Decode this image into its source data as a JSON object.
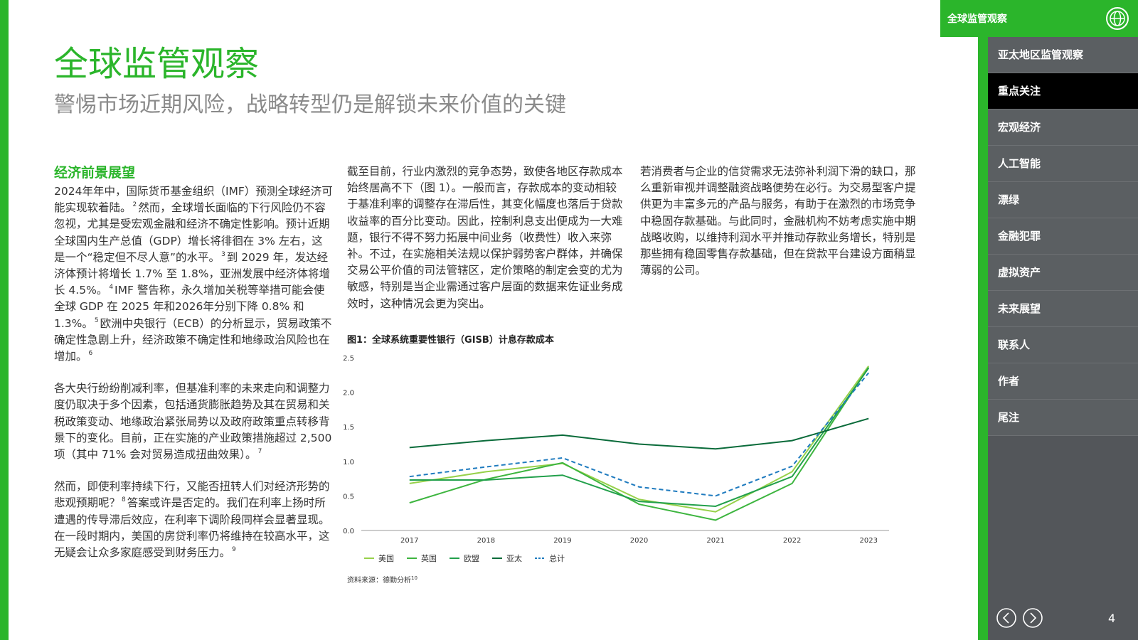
{
  "header": {
    "title": "全球监管观察",
    "subtitle": "警惕市场近期风险，战略转型仍是解锁未来价值的关键"
  },
  "columns": [
    {
      "heading": "经济前景展望",
      "paragraphs": [
        {
          "runs": [
            {
              "text": "2024年年中，国际货币基金组织（IMF）预测全球经济可能实现软着陆。",
              "note": 2
            },
            {
              "text": "然而，全球增长面临的下行风险仍不容忽视，尤其是受宏观金融和经济不确定性影响。预计近期全球国内生产总值（GDP）增长将徘徊在 3% 左右，这是一个“稳定但不尽人意”的水平。",
              "note": 3
            },
            {
              "text": "到 2029 年，发达经济体预计将增长 1.7% 至 1.8%，亚洲发展中经济体将增长 4.5%。",
              "note": 4
            },
            {
              "text": "IMF 警告称，永久增加关税等举措可能会使全球 GDP 在 2025 年和2026年分别下降 0.8% 和 1.3%。",
              "note": 5
            },
            {
              "text": "欧洲中央银行（ECB）的分析显示，贸易政策不确定性急剧上升，经济政策不确定性和地缘政治风险也在增加。",
              "note": 6
            }
          ]
        },
        {
          "runs": [
            {
              "text": "各大央行纷纷削减利率，但基准利率的未来走向和调整力度仍取决于多个因素，包括通货膨胀趋势及其在贸易和关税政策变动、地缘政治紧张局势以及政府政策重点转移背景下的变化。目前，正在实施的产业政策措施超过 2,500 项（其中 71% 会对贸易造成扭曲效果）。",
              "note": 7
            }
          ]
        },
        {
          "runs": [
            {
              "text": "然而，即使利率持续下行，又能否扭转人们对经济形势的悲观预期呢？",
              "note": 8
            },
            {
              "text": "答案或许是否定的。我们在利率上扬时所遭遇的传导滞后效应，在利率下调阶段同样会显著显现。在一段时期内，美国的房贷利率仍将维持在较高水平，这无疑会让众多家庭感受到财务压力。",
              "note": 9
            }
          ]
        }
      ]
    },
    {
      "paragraphs": [
        {
          "runs": [
            {
              "text": "截至目前，行业内激烈的竞争态势，致使各地区存款成本始终居高不下（图 1）。一般而言，存款成本的变动相较于基准利率的调整存在滞后性，其变化幅度也落后于贷款收益率的百分比变动。因此，控制利息支出便成为一大难题，银行不得不努力拓展中间业务（收费性）收入来弥补。不过，在实施相关法规以保护弱势客户群体，并确保交易公平价值的司法管辖区，定价策略的制定会变的尤为敏感，特别是当企业需通过客户层面的数据来佐证业务成效时，这种情况会更为突出。"
            }
          ]
        }
      ]
    },
    {
      "paragraphs": [
        {
          "runs": [
            {
              "text": "若消费者与企业的信贷需求无法弥补利润下滑的缺口，那么重新审视并调整融资战略便势在必行。为交易型客户提供更为丰富多元的产品与服务，有助于在激烈的市场竞争中稳固存款基础。与此同时，金融机构不妨考虑实施中期战略收购，以维持利润水平并推动存款业务增长，特别是那些拥有稳固零售存款基础，但在贷款平台建设方面稍显薄弱的公司。"
            }
          ]
        }
      ]
    }
  ],
  "chart_data": {
    "type": "line",
    "title": "图1：全球系统重要性银行（GISB）计息存款成本",
    "categories": [
      "2017",
      "2018",
      "2019",
      "2020",
      "2021",
      "2022",
      "2023"
    ],
    "series": [
      {
        "name": "美国",
        "color": "#97d14a",
        "values": [
          0.68,
          0.85,
          0.97,
          0.45,
          0.27,
          0.85,
          2.38
        ]
      },
      {
        "name": "英国",
        "color": "#3db53f",
        "values": [
          0.4,
          0.74,
          0.98,
          0.38,
          0.15,
          0.68,
          2.36
        ]
      },
      {
        "name": "欧盟",
        "color": "#22a04b",
        "values": [
          0.73,
          0.73,
          0.8,
          0.42,
          0.35,
          0.78,
          2.35
        ]
      },
      {
        "name": "亚太",
        "color": "#0a6b3a",
        "values": [
          1.2,
          1.3,
          1.38,
          1.25,
          1.18,
          1.3,
          1.62
        ]
      },
      {
        "name": "总计",
        "color": "#1f7bbf",
        "dashed": true,
        "values": [
          0.78,
          0.92,
          1.05,
          0.63,
          0.5,
          0.93,
          2.28
        ]
      }
    ],
    "ylim": [
      0,
      2.5
    ],
    "yticks": [
      {
        "value": 0,
        "label": "0.0"
      },
      {
        "value": 0.5,
        "label": "0.5"
      },
      {
        "value": 1,
        "label": "1.0"
      },
      {
        "value": 1.5,
        "label": "1.5"
      },
      {
        "value": 2,
        "label": "2.0"
      },
      {
        "value": 2.5,
        "label": "2.5"
      }
    ],
    "grid": false,
    "source": {
      "text": "资料来源：德勤分析",
      "note": 10
    }
  },
  "sidebar": {
    "title": "全球监管观察",
    "active": 1,
    "items": [
      "亚太地区监管观察",
      "重点关注",
      "宏观经济",
      "人工智能",
      "漂绿",
      "金融犯罪",
      "虚拟资产",
      "未来展望",
      "联系人",
      "作者",
      "尾注"
    ],
    "page_number": 4
  }
}
